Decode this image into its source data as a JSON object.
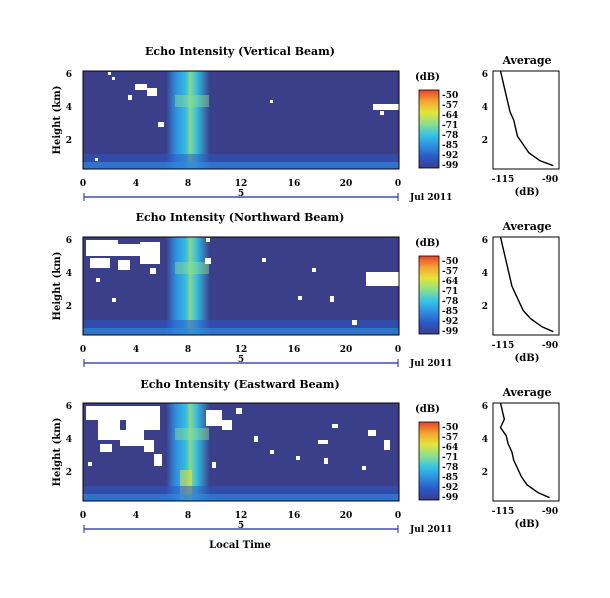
{
  "figure": {
    "xlabel": "Local Time",
    "date_label": "Jul 2011",
    "date_bar_label": "5",
    "ylabel": "Height (km)",
    "colorbar_unit": "(dB)",
    "average_title": "Average",
    "average_xlabel": "(dB)",
    "palette": [
      "#3a3d8f",
      "#2b58c8",
      "#2f8de0",
      "#35c3e6",
      "#8ee08a",
      "#e4e43a",
      "#f4a732",
      "#e8432d"
    ],
    "background_color": "#3b3f8a",
    "gap_color": "#ffffff"
  },
  "chart_data": [
    {
      "type": "heatmap",
      "title": "Echo Intensity (Vertical Beam)",
      "xlabel": "",
      "ylabel": "Height (km)",
      "xlim": [
        0,
        24
      ],
      "ylim": [
        0,
        6
      ],
      "x_ticks": [
        "0",
        "4",
        "8",
        "12",
        "16",
        "20",
        "0"
      ],
      "y_ticks": [
        "2",
        "4",
        "6"
      ],
      "colorbar": {
        "label": "(dB)",
        "ticks": [
          "-50",
          "-57",
          "-64",
          "-71",
          "-78",
          "-85",
          "-92",
          "-99"
        ],
        "range": [
          -99,
          -50
        ]
      },
      "high_echo_band_hours": [
        6.5,
        9.5
      ],
      "average_profile": {
        "title": "Average",
        "xlabel": "(dB)",
        "x_ticks": [
          "-115",
          "-90"
        ],
        "y_ticks": [
          "2",
          "4",
          "6"
        ],
        "height_km": [
          0.2,
          0.5,
          1.0,
          1.5,
          2.0,
          2.5,
          3.0,
          3.5,
          4.0,
          4.5,
          5.0,
          5.5,
          6.0
        ],
        "db": [
          -88,
          -95,
          -101,
          -104,
          -107,
          -108,
          -109,
          -111,
          -112,
          -113,
          -114,
          -115,
          -116
        ]
      }
    },
    {
      "type": "heatmap",
      "title": "Echo Intensity (Northward Beam)",
      "xlabel": "",
      "ylabel": "Height (km)",
      "xlim": [
        0,
        24
      ],
      "ylim": [
        0,
        6
      ],
      "x_ticks": [
        "0",
        "4",
        "8",
        "12",
        "16",
        "20",
        "0"
      ],
      "y_ticks": [
        "2",
        "4",
        "6"
      ],
      "colorbar": {
        "label": "(dB)",
        "ticks": [
          "-50",
          "-57",
          "-64",
          "-71",
          "-78",
          "-85",
          "-92",
          "-99"
        ],
        "range": [
          -99,
          -50
        ]
      },
      "high_echo_band_hours": [
        6.5,
        9.5
      ],
      "average_profile": {
        "title": "Average",
        "xlabel": "(dB)",
        "x_ticks": [
          "-115",
          "-90"
        ],
        "y_ticks": [
          "2",
          "4",
          "6"
        ],
        "height_km": [
          0.2,
          0.5,
          1.0,
          1.5,
          2.0,
          2.5,
          3.0,
          3.5,
          4.0,
          4.5,
          5.0,
          5.5,
          6.0
        ],
        "db": [
          -88,
          -94,
          -100,
          -104,
          -106,
          -108,
          -110,
          -111,
          -112,
          -113,
          -114,
          -115,
          -116
        ]
      }
    },
    {
      "type": "heatmap",
      "title": "Echo Intensity (Eastward Beam)",
      "xlabel": "Local Time",
      "ylabel": "Height (km)",
      "xlim": [
        0,
        24
      ],
      "ylim": [
        0,
        6
      ],
      "x_ticks": [
        "0",
        "4",
        "8",
        "12",
        "16",
        "20",
        "0"
      ],
      "y_ticks": [
        "2",
        "4",
        "6"
      ],
      "colorbar": {
        "label": "(dB)",
        "ticks": [
          "-50",
          "-57",
          "-64",
          "-71",
          "-78",
          "-85",
          "-92",
          "-99"
        ],
        "range": [
          -99,
          -50
        ]
      },
      "high_echo_band_hours": [
        6.5,
        9.5
      ],
      "average_profile": {
        "title": "Average",
        "xlabel": "(dB)",
        "x_ticks": [
          "-115",
          "-90"
        ],
        "y_ticks": [
          "2",
          "4",
          "6"
        ],
        "height_km": [
          0.2,
          0.5,
          1.0,
          1.5,
          2.0,
          2.5,
          3.0,
          3.5,
          4.0,
          4.5,
          5.0,
          5.5,
          6.0
        ],
        "db": [
          -90,
          -96,
          -102,
          -105,
          -107,
          -109,
          -110,
          -112,
          -113,
          -116,
          -114,
          -115,
          -116
        ]
      }
    }
  ]
}
